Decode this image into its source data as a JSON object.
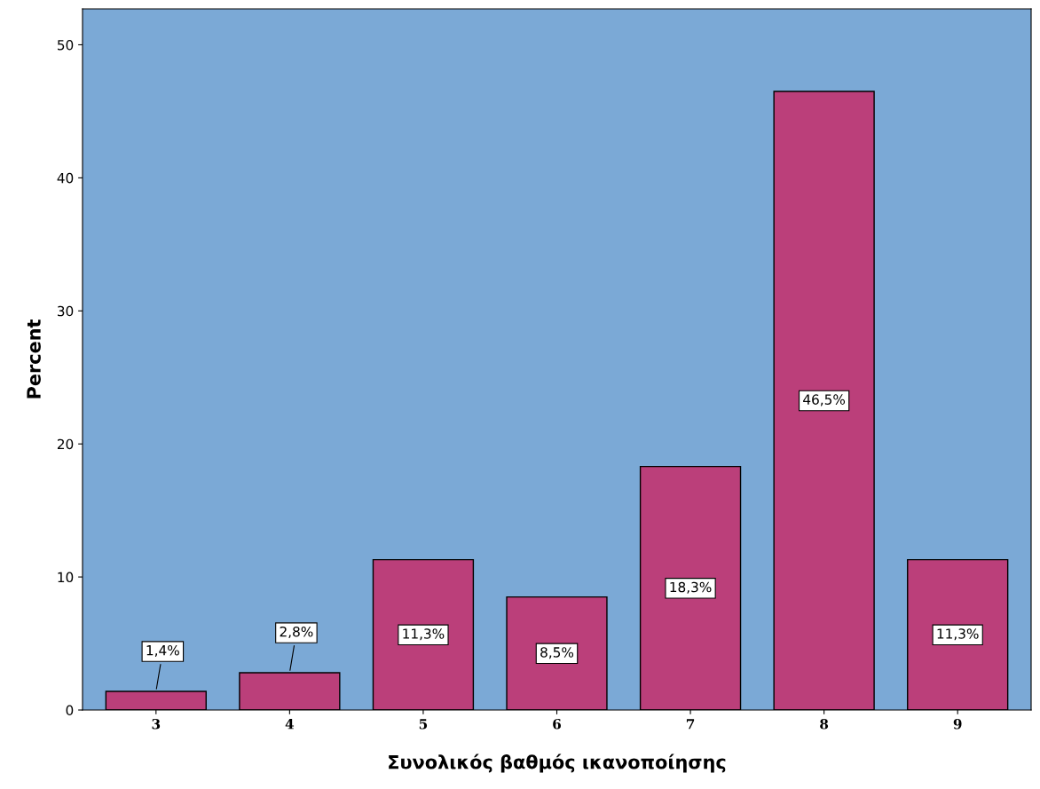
{
  "chart_data": {
    "type": "bar",
    "xlabel": "Συνολικός βαθμός ικανοποίησης",
    "ylabel": "Percent",
    "categories": [
      "3",
      "4",
      "5",
      "6",
      "7",
      "8",
      "9"
    ],
    "values": [
      1.4,
      2.8,
      11.3,
      8.5,
      18.3,
      46.5,
      11.3
    ],
    "value_labels": [
      "1,4%",
      "2,8%",
      "11,3%",
      "8,5%",
      "18,3%",
      "46,5%",
      "11,3%"
    ],
    "color": "#bb3f7a",
    "ylim": [
      0,
      52.7
    ],
    "yticks": [
      0,
      10,
      20,
      30,
      40,
      50
    ],
    "grid": false,
    "legend": false
  }
}
